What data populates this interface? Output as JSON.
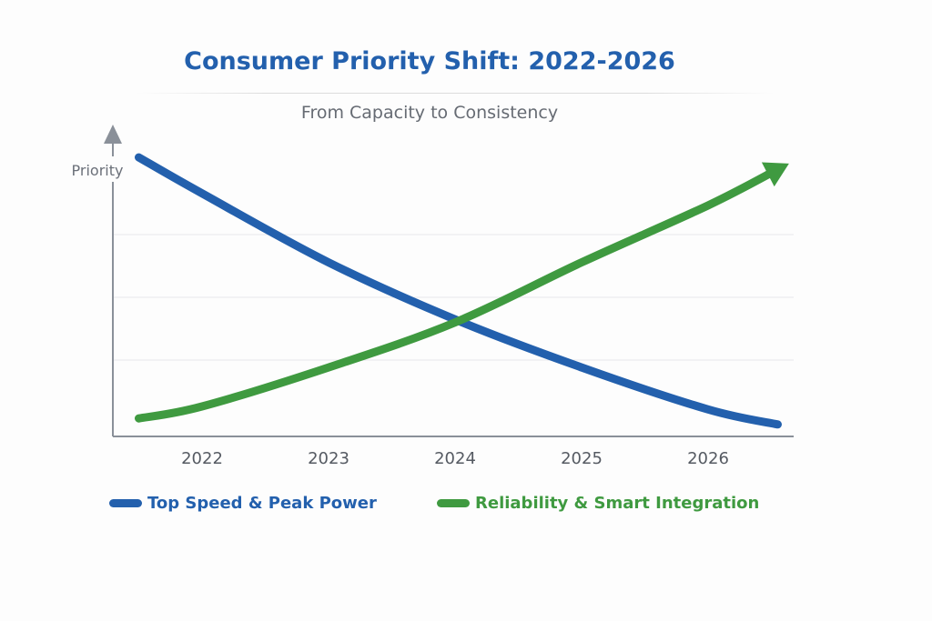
{
  "chart_data": {
    "type": "line",
    "title": "Consumer Priority Shift: 2022-2026",
    "subtitle": "From Capacity to Consistency",
    "ylabel": "Priority",
    "xlabel": "",
    "categories": [
      "2022",
      "2023",
      "2024",
      "2025",
      "2026"
    ],
    "x": [
      2021.5,
      2022,
      2023,
      2024,
      2025,
      2026,
      2026.55
    ],
    "xlim": [
      2021.3,
      2026.7
    ],
    "ylim": [
      0,
      100
    ],
    "y_tick_labels": false,
    "grid": "horizontal",
    "legend_placement": "bottom",
    "series": [
      {
        "name": "Top Speed & Peak Power",
        "color": "#2360ad",
        "values": [
          93,
          81,
          58,
          39,
          23,
          9,
          4
        ],
        "end_marker": "none"
      },
      {
        "name": "Reliability & Smart Integration",
        "color": "#3f9a40",
        "values": [
          6,
          10,
          23,
          38,
          58,
          77,
          89
        ],
        "end_marker": "arrow"
      }
    ],
    "axis_color": "#8a9099"
  }
}
